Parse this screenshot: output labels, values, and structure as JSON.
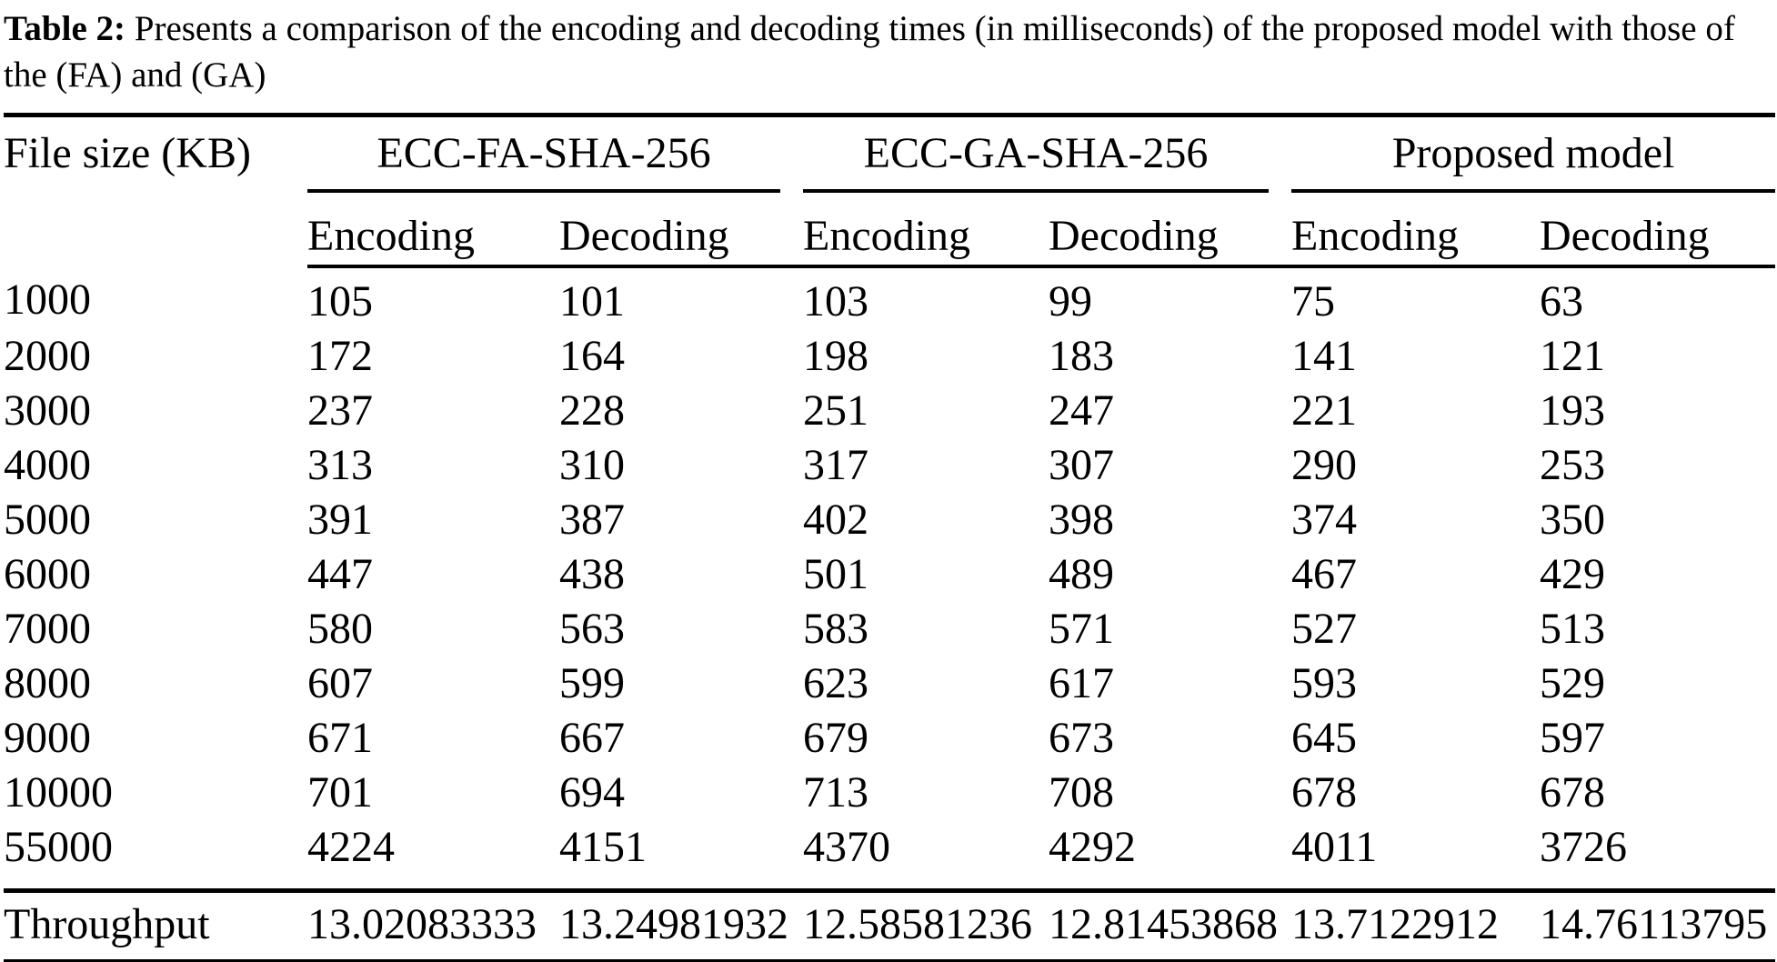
{
  "caption": {
    "label": "Table 2:",
    "text": " Presents a comparison of the encoding and decoding times (in milliseconds) of the proposed model with those of the (FA) and (GA)"
  },
  "table": {
    "col1_header": "File size (KB)",
    "groups": [
      {
        "label": "ECC-FA-SHA-256"
      },
      {
        "label": "ECC-GA-SHA-256"
      },
      {
        "label": "Proposed model"
      }
    ],
    "subheaders": [
      "Encoding",
      "Decoding",
      "Encoding",
      "Decoding",
      "Encoding",
      "Decoding"
    ],
    "rows": [
      {
        "label": "1000",
        "values": [
          "105",
          "101",
          "103",
          "99",
          "75",
          "63"
        ]
      },
      {
        "label": "2000",
        "values": [
          "172",
          "164",
          "198",
          "183",
          "141",
          "121"
        ]
      },
      {
        "label": "3000",
        "values": [
          "237",
          "228",
          "251",
          "247",
          "221",
          "193"
        ]
      },
      {
        "label": "4000",
        "values": [
          "313",
          "310",
          "317",
          "307",
          "290",
          "253"
        ]
      },
      {
        "label": "5000",
        "values": [
          "391",
          "387",
          "402",
          "398",
          "374",
          "350"
        ]
      },
      {
        "label": "6000",
        "values": [
          "447",
          "438",
          "501",
          "489",
          "467",
          "429"
        ]
      },
      {
        "label": "7000",
        "values": [
          "580",
          "563",
          "583",
          "571",
          "527",
          "513"
        ]
      },
      {
        "label": "8000",
        "values": [
          "607",
          "599",
          "623",
          "617",
          "593",
          "529"
        ]
      },
      {
        "label": "9000",
        "values": [
          "671",
          "667",
          "679",
          "673",
          "645",
          "597"
        ]
      },
      {
        "label": "10000",
        "values": [
          "701",
          "694",
          "713",
          "708",
          "678",
          "678"
        ]
      },
      {
        "label": "55000",
        "values": [
          "4224",
          "4151",
          "4370",
          "4292",
          "4011",
          "3726"
        ]
      }
    ],
    "footer": {
      "label": "Throughput",
      "values": [
        "13.02083333",
        "13.24981932",
        "12.58581236",
        "12.81453868",
        "13.7122912",
        "14.76113795"
      ]
    }
  },
  "chart_data": {
    "type": "table",
    "title": "Table 2: Presents a comparison of the encoding and decoding times (in milliseconds) of the proposed model with those of the (FA) and (GA)",
    "columns": [
      "File size (KB)",
      "ECC-FA-SHA-256 Encoding",
      "ECC-FA-SHA-256 Decoding",
      "ECC-GA-SHA-256 Encoding",
      "ECC-GA-SHA-256 Decoding",
      "Proposed model Encoding",
      "Proposed model Decoding"
    ],
    "rows": [
      [
        1000,
        105,
        101,
        103,
        99,
        75,
        63
      ],
      [
        2000,
        172,
        164,
        198,
        183,
        141,
        121
      ],
      [
        3000,
        237,
        228,
        251,
        247,
        221,
        193
      ],
      [
        4000,
        313,
        310,
        317,
        307,
        290,
        253
      ],
      [
        5000,
        391,
        387,
        402,
        398,
        374,
        350
      ],
      [
        6000,
        447,
        438,
        501,
        489,
        467,
        429
      ],
      [
        7000,
        580,
        563,
        583,
        571,
        527,
        513
      ],
      [
        8000,
        607,
        599,
        623,
        617,
        593,
        529
      ],
      [
        9000,
        671,
        667,
        679,
        673,
        645,
        597
      ],
      [
        10000,
        701,
        694,
        713,
        708,
        678,
        678
      ],
      [
        55000,
        4224,
        4151,
        4370,
        4292,
        4011,
        3726
      ]
    ],
    "throughput": [
      13.02083333,
      13.24981932,
      12.58581236,
      12.81453868,
      13.7122912,
      14.76113795
    ]
  }
}
